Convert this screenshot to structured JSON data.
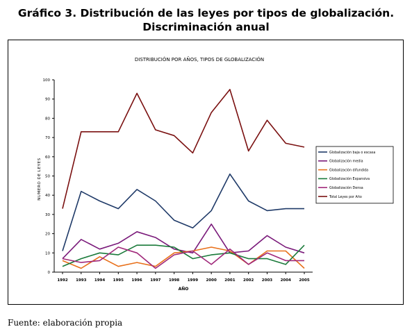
{
  "heading": {
    "line1": "Gráfico 3. Distribución de las leyes por tipos de globalización.",
    "line2": "Discriminación anual"
  },
  "source": "Fuente: elaboración propia",
  "chart_data": {
    "type": "line",
    "title": "DISTRIBUCIÓN POR AÑOS, TIPOS DE GLOBALIZACIÓN",
    "xlabel": "AÑO",
    "ylabel": "NUMERO DE LEYES",
    "ylim": [
      0,
      100
    ],
    "yticks": [
      0,
      10,
      20,
      30,
      40,
      50,
      60,
      70,
      80,
      90,
      100
    ],
    "grid": false,
    "legend_position": "right",
    "x": [
      "1992",
      "1993",
      "1994",
      "1995",
      "1996",
      "1997",
      "1998",
      "1999",
      "2000",
      "2001",
      "2002",
      "2003",
      "2004",
      "2005"
    ],
    "series": [
      {
        "name": "Globalización baja o escasa",
        "color": "#1f3a68",
        "values": [
          11,
          42,
          37,
          33,
          43,
          37,
          27,
          23,
          32,
          51,
          37,
          32,
          33,
          33
        ]
      },
      {
        "name": "Globalización media",
        "color": "#7a1a7a",
        "values": [
          7,
          17,
          12,
          15,
          21,
          18,
          12,
          10,
          25,
          10,
          11,
          19,
          13,
          10
        ]
      },
      {
        "name": "Globalización difundida",
        "color": "#e8701a",
        "values": [
          6,
          2,
          8,
          3,
          5,
          3,
          10,
          11,
          13,
          11,
          4,
          11,
          11,
          2
        ]
      },
      {
        "name": "Globalización Expansiva",
        "color": "#1a7a3a",
        "values": [
          3,
          7,
          10,
          9,
          14,
          14,
          13,
          7,
          9,
          10,
          7,
          7,
          4,
          14
        ]
      },
      {
        "name": "Globalización Densa",
        "color": "#a0287a",
        "values": [
          7,
          5,
          6,
          13,
          10,
          2,
          9,
          11,
          4,
          12,
          4,
          10,
          6,
          6
        ]
      },
      {
        "name": "Total Leyes por Año",
        "color": "#7a1010",
        "values": [
          33,
          73,
          73,
          73,
          93,
          74,
          71,
          62,
          83,
          95,
          63,
          79,
          67,
          65
        ]
      }
    ]
  }
}
